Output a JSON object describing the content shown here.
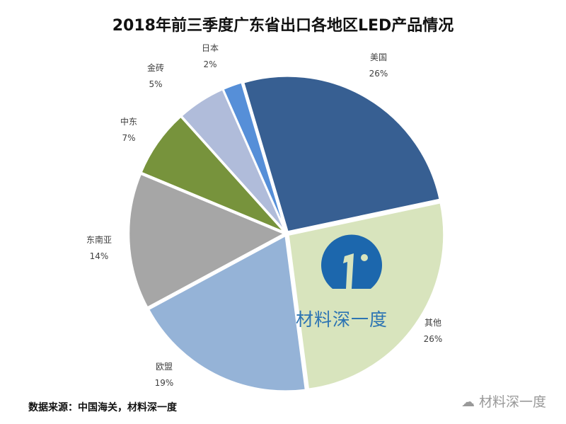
{
  "chart_data": {
    "type": "pie",
    "title": "2018年前三季度广东省出口各地区LED产品情况",
    "slices": [
      {
        "label": "美国",
        "value": 26,
        "value_label": "26%",
        "color": "#375f92"
      },
      {
        "label": "其他",
        "value": 26,
        "value_label": "26%",
        "color": "#d8e4bd"
      },
      {
        "label": "欧盟",
        "value": 19,
        "value_label": "19%",
        "color": "#95b3d7"
      },
      {
        "label": "东南亚",
        "value": 14,
        "value_label": "14%",
        "color": "#a6a6a6"
      },
      {
        "label": "中东",
        "value": 7,
        "value_label": "7%",
        "color": "#77933c"
      },
      {
        "label": "金砖",
        "value": 5,
        "value_label": "5%",
        "color": "#b0bcda"
      },
      {
        "label": "日本",
        "value": 2,
        "value_label": "2%",
        "color": "#568fd8"
      }
    ]
  },
  "source": "数据来源：中国海关，材料深一度",
  "watermark": "材料深一度",
  "logo_text": "材料深一度"
}
